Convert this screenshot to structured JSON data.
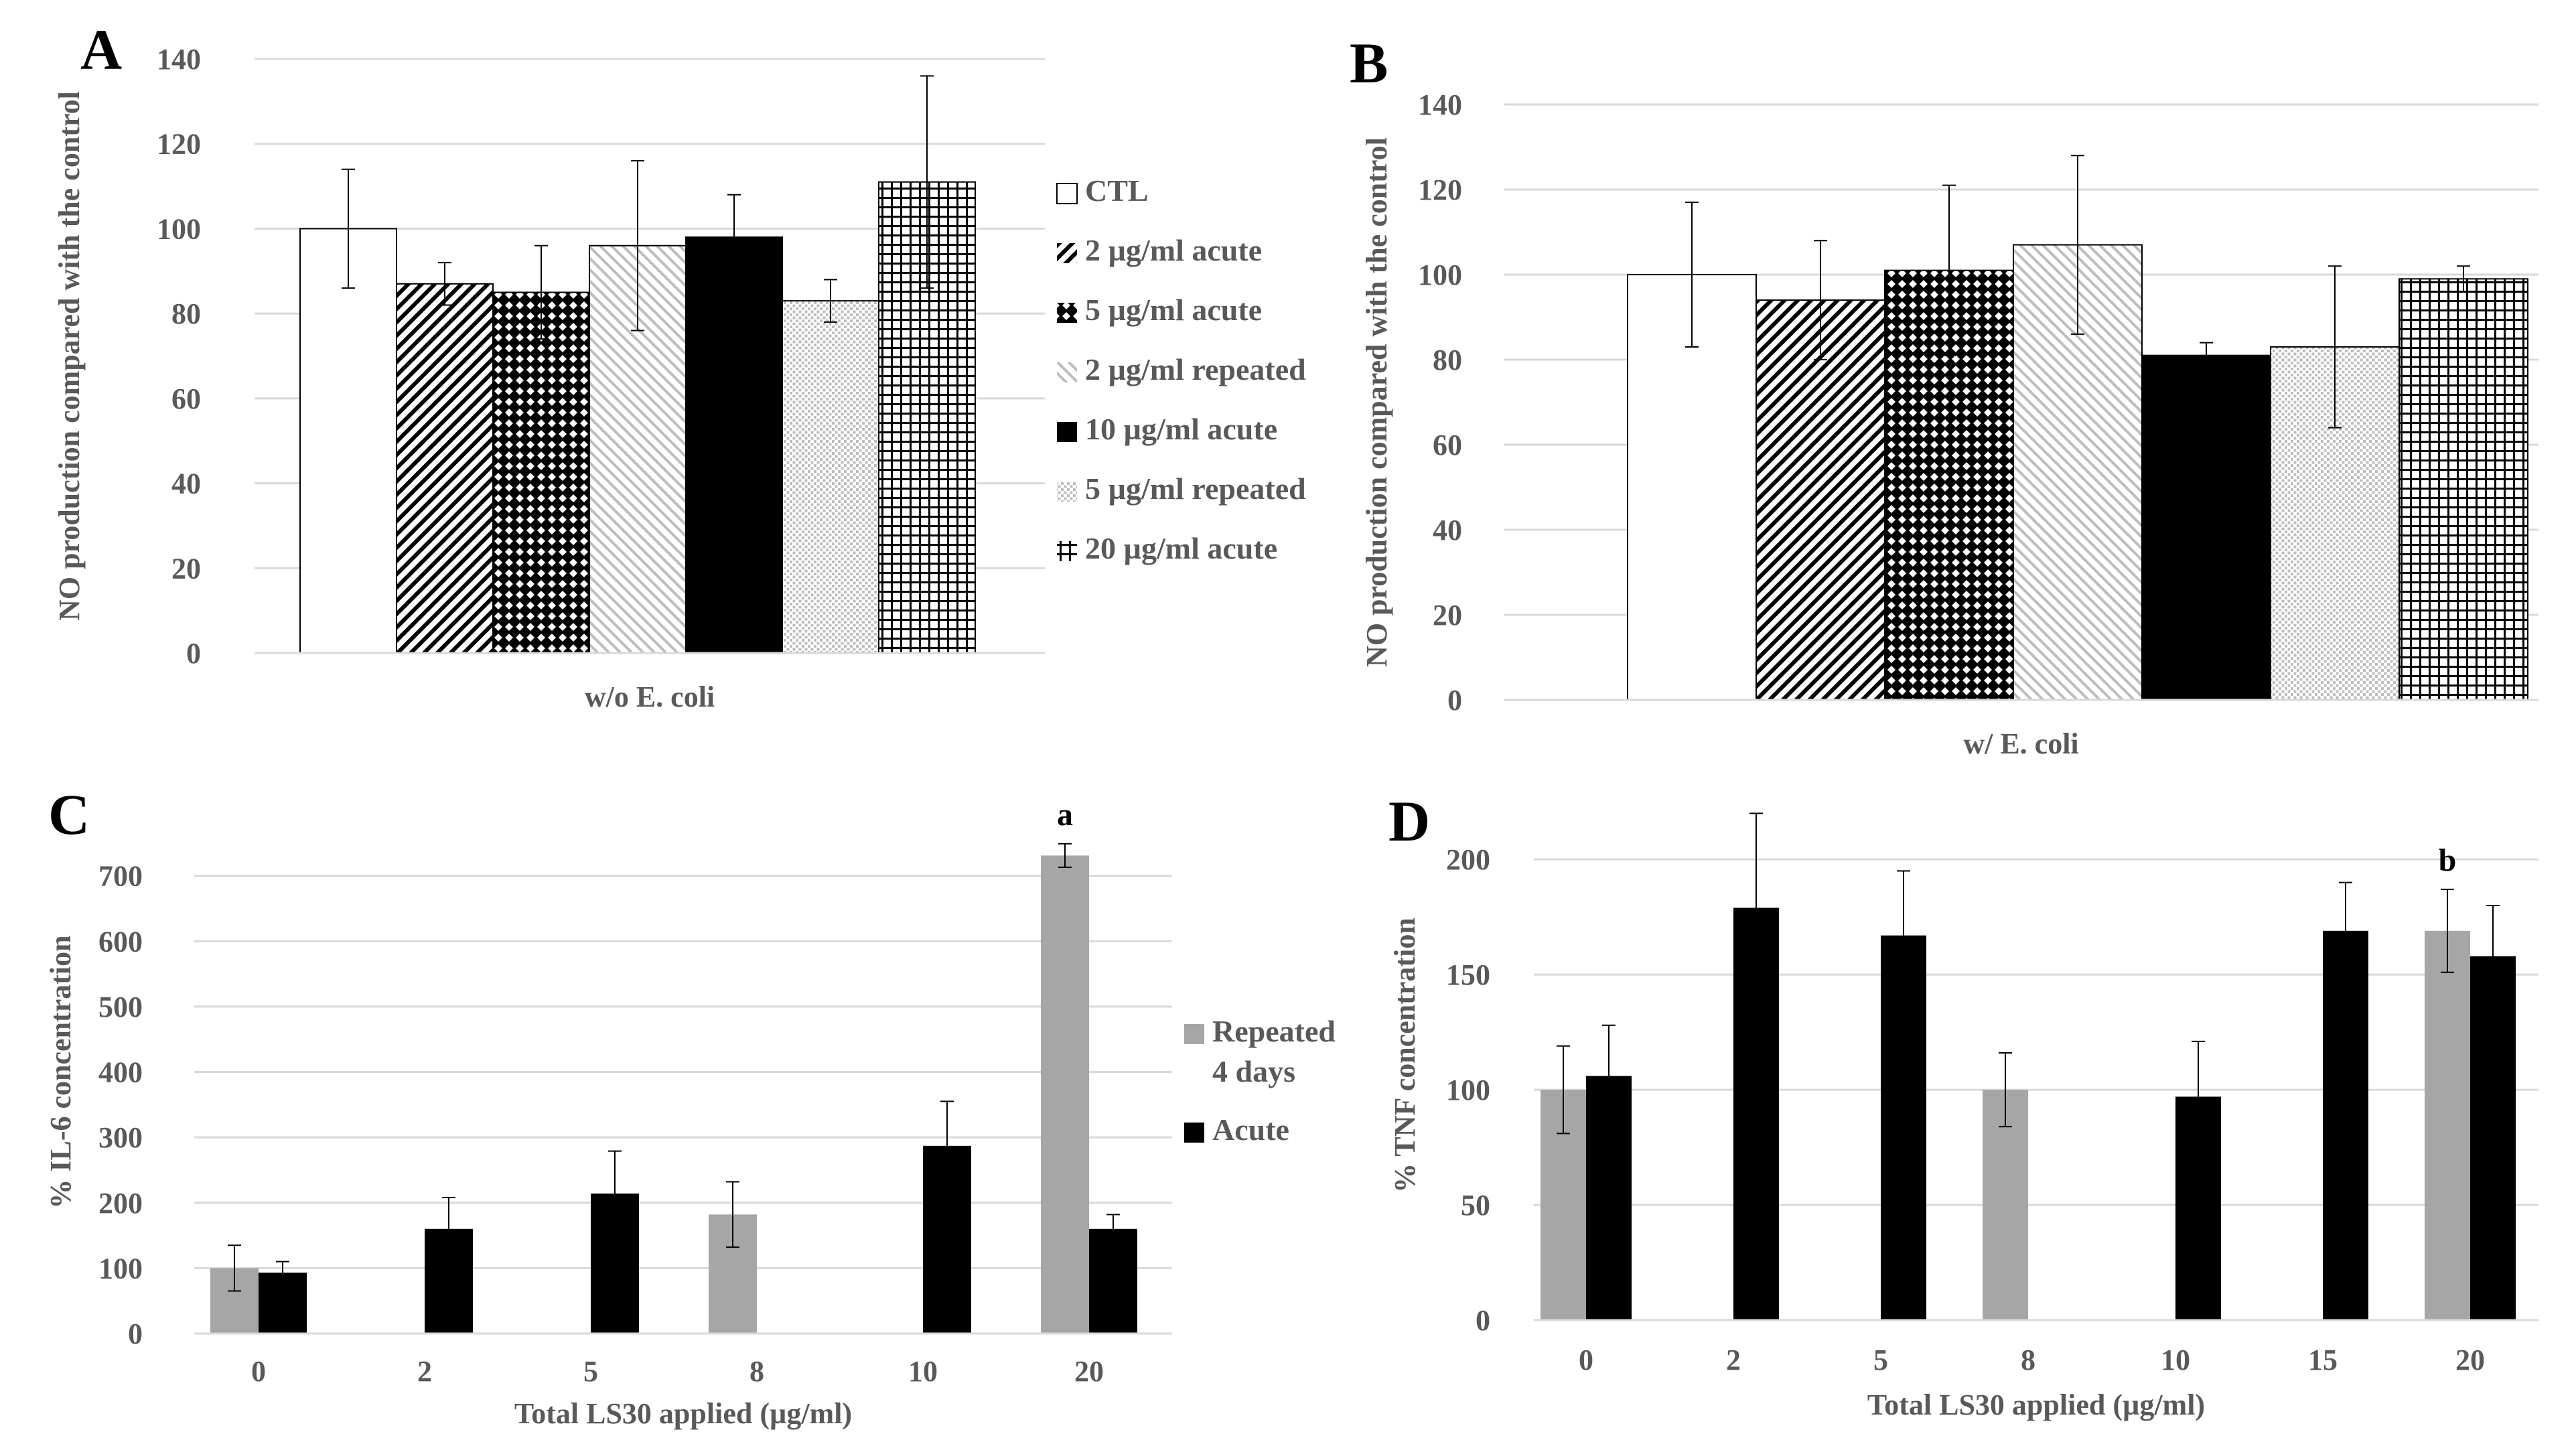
{
  "chart_data": [
    {
      "panel": "A",
      "type": "bar",
      "title": "",
      "xlabel": "w/o E. coli",
      "ylabel": "NO production compared with the control",
      "ylim": [
        0,
        140
      ],
      "yticks": [
        0,
        20,
        40,
        60,
        80,
        100,
        120,
        140
      ],
      "categories": [
        "w/o E. coli"
      ],
      "grid": true,
      "legend_position": "right",
      "series": [
        {
          "name": "CTL",
          "pattern": "white",
          "values": [
            100
          ],
          "error": [
            14
          ]
        },
        {
          "name": "2 µg/ml acute",
          "pattern": "diag-dense",
          "values": [
            87
          ],
          "error": [
            5
          ]
        },
        {
          "name": "5 µg/ml acute",
          "pattern": "diamond",
          "values": [
            85
          ],
          "error": [
            11
          ]
        },
        {
          "name": "2 µg/ml repeated",
          "pattern": "diag-light",
          "values": [
            96
          ],
          "error": [
            20
          ]
        },
        {
          "name": "10 µg/ml acute",
          "pattern": "black",
          "values": [
            98
          ],
          "error": [
            10
          ]
        },
        {
          "name": "5 µg/ml repeated",
          "pattern": "dots",
          "values": [
            83
          ],
          "error": [
            5
          ]
        },
        {
          "name": "20 µg/ml acute",
          "pattern": "grid",
          "values": [
            111
          ],
          "error": [
            25
          ]
        }
      ]
    },
    {
      "panel": "B",
      "type": "bar",
      "title": "",
      "xlabel": "w/ E. coli",
      "ylabel": "NO production compared with the control",
      "ylim": [
        0,
        140
      ],
      "yticks": [
        0,
        20,
        40,
        60,
        80,
        100,
        120,
        140
      ],
      "categories": [
        "w/ E. coli"
      ],
      "grid": true,
      "series": [
        {
          "name": "CTL",
          "pattern": "white",
          "values": [
            100
          ],
          "error": [
            17
          ]
        },
        {
          "name": "2 µg/ml acute",
          "pattern": "diag-dense",
          "values": [
            94
          ],
          "error": [
            14
          ]
        },
        {
          "name": "5 µg/ml acute",
          "pattern": "diamond",
          "values": [
            101
          ],
          "error": [
            20
          ]
        },
        {
          "name": "2 µg/ml repeated",
          "pattern": "diag-light",
          "values": [
            107
          ],
          "error": [
            21
          ]
        },
        {
          "name": "10 µg/ml acute",
          "pattern": "black",
          "values": [
            81
          ],
          "error": [
            3
          ]
        },
        {
          "name": "5 µg/ml repeated",
          "pattern": "dots",
          "values": [
            83
          ],
          "error": [
            19
          ]
        },
        {
          "name": "20 µg/ml acute",
          "pattern": "grid",
          "values": [
            99
          ],
          "error": [
            3
          ]
        }
      ]
    },
    {
      "panel": "C",
      "type": "bar",
      "title": "",
      "xlabel": "Total LS30 applied (µg/ml)",
      "ylabel": "% IL-6 concentration",
      "ylim": [
        0,
        800
      ],
      "yticks": [
        0,
        100,
        200,
        300,
        400,
        500,
        600,
        700
      ],
      "categories": [
        "0",
        "2",
        "5",
        "8",
        "10",
        "20"
      ],
      "grid": true,
      "legend_position": "right",
      "annotation": {
        "text": "a",
        "category": "20"
      },
      "series": [
        {
          "name": "Repeated 4 days",
          "legend_lines": [
            "Repeated",
            "4 days"
          ],
          "color": "#a6a6a6",
          "values": [
            100,
            null,
            null,
            182,
            null,
            731
          ],
          "error": [
            35,
            null,
            null,
            50,
            null,
            18
          ]
        },
        {
          "name": "Acute",
          "legend_lines": [
            "Acute"
          ],
          "color": "#000000",
          "values": [
            93,
            160,
            214,
            null,
            287,
            160
          ],
          "error": [
            17,
            48,
            65,
            null,
            68,
            22
          ]
        }
      ]
    },
    {
      "panel": "D",
      "type": "bar",
      "title": "",
      "xlabel": "Total LS30 applied (µg/ml)",
      "ylabel": "% TNF concentration",
      "ylim": [
        0,
        230
      ],
      "yticks": [
        0,
        50,
        100,
        150,
        200
      ],
      "categories": [
        "0",
        "2",
        "5",
        "8",
        "10",
        "15",
        "20"
      ],
      "grid": true,
      "annotation": {
        "text": "b",
        "category": "20"
      },
      "series": [
        {
          "name": "Repeated 4 days",
          "color": "#a6a6a6",
          "values": [
            100,
            null,
            null,
            100,
            null,
            null,
            169
          ],
          "error": [
            19,
            null,
            null,
            16,
            null,
            null,
            18
          ]
        },
        {
          "name": "Acute",
          "color": "#000000",
          "values": [
            106,
            179,
            167,
            null,
            97,
            169,
            158
          ],
          "error": [
            22,
            41,
            28,
            null,
            24,
            21,
            22
          ]
        }
      ]
    }
  ]
}
